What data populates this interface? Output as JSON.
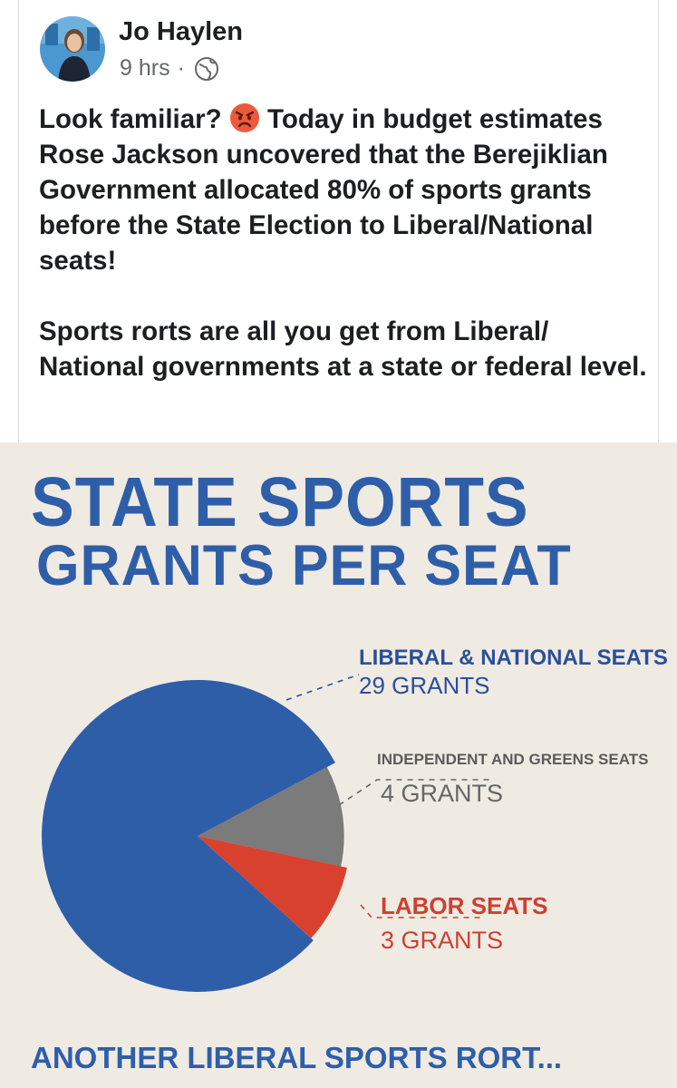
{
  "post": {
    "author": "Jo Haylen",
    "time": "9 hrs",
    "separator": "·",
    "paragraph1_a": "Look familiar? ",
    "paragraph1_b": " Today in budget estimates ",
    "paragraph1_name": "Rose Jackson",
    "paragraph1_c": " uncovered that the Berejiklian Government allocated 80% of sports grants before the State Election to Liberal/National seats!",
    "paragraph2": "Sports rorts are all you get from Liberal/ National governments at a state or federal level.",
    "icons": {
      "avatar": "author-avatar",
      "audience": "globe-icon",
      "emoji": "angry-face-emoji"
    }
  },
  "image": {
    "title_line1": "STATE SPORTS",
    "title_line2": "GRANTS PER SEAT",
    "footer": "ANOTHER LIBERAL SPORTS RORT...",
    "colors": {
      "blue": "#2f5ea9",
      "gray": "#7b7b7b",
      "red": "#d9412f",
      "background": "#efebe3"
    }
  },
  "chart_data": {
    "type": "pie",
    "title": "STATE SPORTS GRANTS PER SEAT",
    "slices": [
      {
        "name": "LIBERAL & NATIONAL SEATS",
        "label": "29 GRANTS",
        "value": 29,
        "color": "#2f5ea9"
      },
      {
        "name": "INDEPENDENT AND GREENS SEATS",
        "label": "4 GRANTS",
        "value": 4,
        "color": "#7b7b7b"
      },
      {
        "name": "LABOR SEATS",
        "label": "3 GRANTS",
        "value": 3,
        "color": "#d9412f"
      }
    ]
  }
}
